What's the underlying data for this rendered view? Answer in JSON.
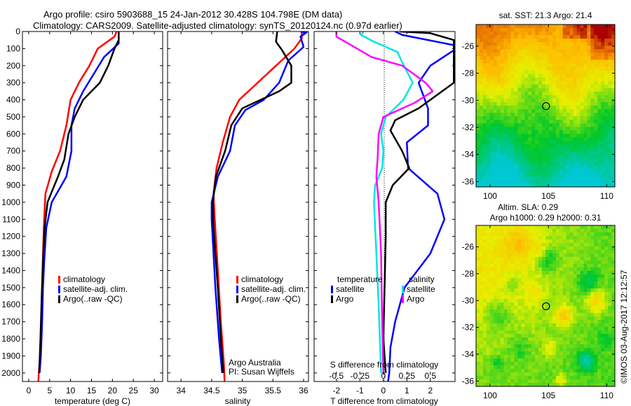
{
  "header": {
    "line1": "Argo profile: csiro 5903688_15 24-Jan-2012 30.428S 104.798E (DM data)",
    "line2": "Climatology: CARS2009. Satellite-adjusted climatology: synTS_20120124.nc (0.97d earlier)"
  },
  "colors": {
    "climatology": "#ff0000",
    "satellite": "#0000ff",
    "argo": "#000000",
    "sal_satellite": "#00e5e5",
    "sal_argo": "#ff00ff"
  },
  "chart_data": [
    {
      "type": "line",
      "id": "temperature",
      "xlabel": "temperature (deg C)",
      "ylabel": "",
      "xlim": [
        -1.5,
        32
      ],
      "ylim": [
        2050,
        0
      ],
      "xticks": [
        "0",
        "5",
        "10",
        "15",
        "20",
        "25",
        "30"
      ],
      "yticks": [
        "0",
        "100",
        "200",
        "300",
        "400",
        "500",
        "600",
        "700",
        "800",
        "900",
        "1000",
        "1100",
        "1200",
        "1300",
        "1400",
        "1500",
        "1600",
        "1700",
        "1800",
        "1900",
        "2000"
      ],
      "legend": [
        "climatology",
        "satellite-adj. clim.",
        "Argo(..raw -QC)"
      ],
      "legend_placement": "center",
      "series": [
        {
          "name": "climatology",
          "color": "#ff0000",
          "x": [
            21.0,
            20.5,
            16.5,
            14.5,
            12.0,
            10.0,
            9.0,
            7.5,
            5.5,
            4.0,
            3.7,
            3.4,
            3.2,
            3.0,
            2.7,
            2.4,
            2.3
          ],
          "y": [
            0,
            30,
            100,
            200,
            300,
            400,
            550,
            700,
            820,
            950,
            1100,
            1300,
            1500,
            1700,
            1900,
            2000,
            2050
          ]
        },
        {
          "name": "satellite-adj. clim.",
          "color": "#0000ff",
          "x": [
            21.5,
            21.5,
            18.0,
            15.5,
            13.0,
            11.0,
            10.2,
            10.2,
            9.0,
            5.5,
            4.2,
            3.7,
            3.4,
            3.2,
            2.9,
            2.6
          ],
          "y": [
            0,
            70,
            150,
            250,
            350,
            450,
            550,
            700,
            850,
            1000,
            1150,
            1350,
            1500,
            1700,
            1900,
            2000
          ]
        },
        {
          "name": "Argo(..raw -QC)",
          "color": "#000000",
          "x": [
            21.5,
            21.5,
            20.5,
            19.0,
            17.0,
            13.0,
            11.0,
            9.5,
            8.5,
            7.0,
            4.5,
            3.8,
            3.4,
            3.1,
            2.8,
            2.5
          ],
          "y": [
            0,
            50,
            100,
            200,
            300,
            400,
            500,
            600,
            750,
            850,
            1000,
            1150,
            1350,
            1550,
            1800,
            2000
          ]
        }
      ]
    },
    {
      "type": "line",
      "id": "salinity",
      "xlabel": "salinity",
      "xlim": [
        33.78,
        36.08
      ],
      "ylim": [
        2050,
        0
      ],
      "xticks": [
        "34",
        "34.5",
        "35",
        "35.5",
        "36"
      ],
      "legend": [
        "climatology",
        "satellite-adj. clim.",
        "Argo(..raw -QC)"
      ],
      "legend_placement": "center-right",
      "annotation": [
        "Argo Australia",
        "PI: Susan Wijffels"
      ],
      "series": [
        {
          "name": "climatology",
          "color": "#ff0000",
          "x": [
            35.97,
            35.97,
            35.85,
            35.55,
            35.25,
            34.95,
            34.8,
            34.68,
            34.58,
            34.53,
            34.55,
            34.6,
            34.65,
            34.7,
            34.71
          ],
          "y": [
            0,
            40,
            100,
            200,
            300,
            400,
            500,
            650,
            800,
            950,
            1100,
            1400,
            1700,
            1950,
            2050
          ]
        },
        {
          "name": "satellite-adj. clim.",
          "color": "#0000ff",
          "x": [
            35.95,
            36.05,
            35.95,
            36.0,
            35.75,
            35.6,
            35.35,
            35.05,
            34.88,
            34.8,
            34.6,
            34.5,
            34.5,
            34.56,
            34.62,
            34.67
          ],
          "y": [
            0,
            5,
            30,
            90,
            170,
            300,
            400,
            460,
            550,
            700,
            850,
            1000,
            1100,
            1500,
            1800,
            2000
          ]
        },
        {
          "name": "Argo(..raw -QC)",
          "color": "#000000",
          "x": [
            35.57,
            35.55,
            35.65,
            35.8,
            35.8,
            35.6,
            35.3,
            35.0,
            34.82,
            34.72,
            34.57,
            34.52,
            34.53,
            34.6,
            34.65,
            34.69
          ],
          "y": [
            0,
            60,
            110,
            200,
            300,
            350,
            400,
            450,
            550,
            700,
            850,
            1000,
            1150,
            1500,
            1800,
            2000
          ]
        }
      ]
    },
    {
      "type": "line",
      "id": "difference",
      "xlabel": "T difference from climatology",
      "xlabel_secondary": "S difference from climatology",
      "xlim": [
        -2.95,
        3.05
      ],
      "ylim": [
        2050,
        0
      ],
      "xticks": [
        "-2",
        "-1",
        "0",
        "1",
        "2"
      ],
      "xticks_secondary": [
        "-0.5",
        "-0.25",
        "0",
        "0.25",
        "0.5"
      ],
      "legend": {
        "temperature_heading": "temperature",
        "salinity_heading": "salinity",
        "entries": [
          "satellite",
          "Argo",
          "satellite",
          "Argo"
        ]
      },
      "legend_placement": "bottom-center",
      "series": [
        {
          "name": "temperature satellite",
          "color": "#0000ff",
          "x": [
            0.5,
            0.8,
            3.0,
            3.0,
            3.0,
            2.0,
            1.5,
            1.9,
            1.9,
            1.0,
            1.05,
            2.3,
            2.6,
            2.0,
            0.9,
            0.5,
            0.3,
            0.25,
            0.2
          ],
          "y": [
            0,
            20,
            80,
            100,
            110,
            200,
            300,
            450,
            550,
            650,
            800,
            950,
            1100,
            1300,
            1500,
            1700,
            1850,
            2000,
            2050
          ]
        },
        {
          "name": "temperature Argo",
          "color": "#000000",
          "x": [
            0.7,
            2.0,
            3.0,
            3.0,
            2.5,
            1.5,
            0.5,
            0.3,
            0.8,
            1.1,
            0.4,
            0.1,
            0.1,
            0.05,
            0.0,
            0.1
          ],
          "y": [
            0,
            10,
            50,
            300,
            350,
            450,
            520,
            580,
            700,
            800,
            900,
            1000,
            1200,
            1500,
            1800,
            2000
          ]
        },
        {
          "name": "salinity satellite",
          "color": "#00e5e5",
          "x": [
            -0.85,
            -0.95,
            -0.4,
            0.6,
            0.8,
            1.25,
            0.85,
            0.1,
            -0.1,
            0.0,
            -0.05,
            -0.35,
            -0.4,
            -0.3,
            -0.2,
            -0.15,
            -0.1
          ],
          "y": [
            0,
            20,
            60,
            120,
            180,
            300,
            400,
            500,
            600,
            700,
            800,
            900,
            1000,
            1300,
            1600,
            1800,
            2000
          ]
        },
        {
          "name": "salinity Argo",
          "color": "#ff00ff",
          "x": [
            -2.0,
            -2.0,
            -1.5,
            -0.5,
            0.8,
            1.8,
            2.1,
            1.3,
            0.0,
            -0.2,
            -0.25,
            -0.3,
            -0.2,
            -0.1,
            -0.05,
            0.0
          ],
          "y": [
            0,
            30,
            70,
            150,
            200,
            300,
            350,
            420,
            500,
            600,
            750,
            850,
            1000,
            1300,
            1700,
            2000
          ]
        }
      ]
    },
    {
      "type": "heatmap",
      "id": "sst-map",
      "title": "sat. SST: 21.3 Argo: 21.4",
      "xlim": [
        98.8,
        110.7
      ],
      "ylim": [
        -36.4,
        -24.4
      ],
      "xticks": [
        "100",
        "105",
        "110"
      ],
      "yticks": [
        "-26",
        "-28",
        "-30",
        "-32",
        "-34",
        "-36"
      ],
      "marker": {
        "lon": 104.8,
        "lat": -30.43
      }
    },
    {
      "type": "heatmap",
      "id": "sla-map",
      "title": "Altim. SLA: 0.29",
      "subtitle": "Argo h1000: 0.29 h2000: 0.31",
      "xlim": [
        98.8,
        110.7
      ],
      "ylim": [
        -36.4,
        -24.4
      ],
      "xticks": [
        "100",
        "105",
        "110"
      ],
      "yticks": [
        "-26",
        "-28",
        "-30",
        "-32",
        "-34",
        "-36"
      ],
      "marker": {
        "lon": 104.8,
        "lat": -30.43
      }
    }
  ],
  "footer": {
    "copyright": "©IMOS 03-Aug-2017 12:12:57"
  }
}
